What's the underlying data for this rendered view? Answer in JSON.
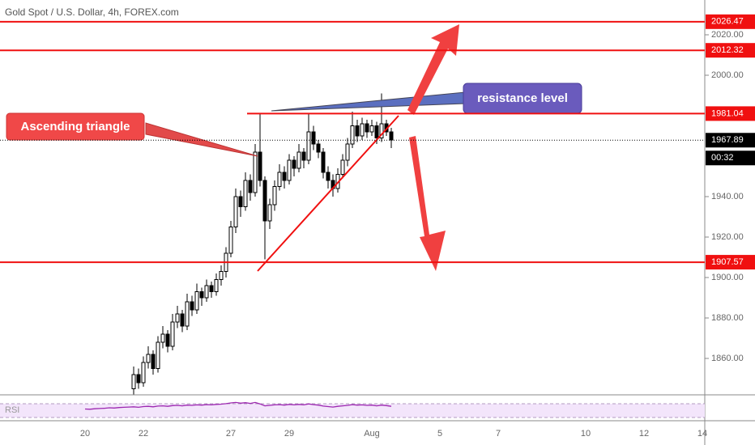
{
  "chart_data": {
    "type": "candlestick",
    "title": "Gold Spot / U.S. Dollar, 4h, FOREX.com",
    "ylim": [
      1842,
      2037.2
    ],
    "yticks": [
      {
        "value": 1860,
        "label": "1860.00"
      },
      {
        "value": 1880,
        "label": "1880.00"
      },
      {
        "value": 1900,
        "label": "1900.00"
      },
      {
        "value": 1920,
        "label": "1920.00"
      },
      {
        "value": 1940,
        "label": "1940.00"
      },
      {
        "value": 2000,
        "label": "2000.00"
      },
      {
        "value": 2020,
        "label": "2020.00"
      }
    ],
    "categories": [
      "20",
      null,
      null,
      null,
      null,
      null,
      null,
      null,
      null,
      null,
      null,
      null,
      "22",
      null,
      null,
      null,
      null,
      null,
      null,
      null,
      null,
      null,
      null,
      null,
      null,
      null,
      null,
      null,
      null,
      null,
      "27",
      null,
      null,
      null,
      null,
      null,
      null,
      null,
      null,
      null,
      null,
      null,
      "29",
      null,
      null,
      null,
      null,
      null,
      null,
      null,
      null,
      null,
      null,
      null,
      null,
      null,
      null,
      null,
      null,
      "Aug",
      null,
      null,
      null,
      null,
      null,
      null,
      null,
      null,
      null,
      null,
      null,
      null,
      null,
      "5",
      null,
      null,
      null,
      null,
      null,
      null,
      null,
      null,
      null,
      null,
      null,
      "7",
      null,
      null,
      null,
      null,
      null,
      null,
      null,
      null,
      null,
      null,
      null,
      null,
      null,
      null,
      null,
      null,
      null,
      "10",
      null,
      null,
      null,
      null,
      null,
      null,
      null,
      null,
      null,
      null,
      null,
      "12",
      null,
      null,
      null,
      null,
      null,
      null,
      null,
      null,
      null,
      null,
      null,
      "14"
    ],
    "ohlc": [
      null,
      null,
      null,
      null,
      null,
      null,
      null,
      null,
      null,
      null,
      [
        1845,
        1856,
        1842,
        1852
      ],
      [
        1852,
        1855,
        1845,
        1848
      ],
      [
        1848,
        1861,
        1846,
        1858
      ],
      [
        1858,
        1866,
        1855,
        1862
      ],
      [
        1862,
        1864,
        1852,
        1855
      ],
      [
        1855,
        1871,
        1853,
        1868
      ],
      [
        1868,
        1876,
        1865,
        1872
      ],
      [
        1872,
        1874,
        1863,
        1866
      ],
      [
        1866,
        1882,
        1864,
        1878
      ],
      [
        1878,
        1886,
        1875,
        1882
      ],
      [
        1882,
        1884,
        1873,
        1876
      ],
      [
        1876,
        1892,
        1874,
        1888
      ],
      [
        1888,
        1891,
        1881,
        1884
      ],
      [
        1884,
        1897,
        1882,
        1893
      ],
      [
        1893,
        1895,
        1886,
        1890
      ],
      [
        1890,
        1899,
        1888,
        1896
      ],
      [
        1896,
        1898,
        1890,
        1893
      ],
      [
        1893,
        1902,
        1891,
        1899
      ],
      [
        1899,
        1906,
        1896,
        1903
      ],
      [
        1903,
        1915,
        1900,
        1912
      ],
      [
        1912,
        1928,
        1910,
        1925
      ],
      [
        1925,
        1944,
        1922,
        1940
      ],
      [
        1940,
        1943,
        1930,
        1935
      ],
      [
        1935,
        1952,
        1933,
        1948
      ],
      [
        1948,
        1951,
        1938,
        1942
      ],
      [
        1942,
        1966,
        1940,
        1962
      ],
      [
        1962,
        1981,
        1945,
        1948
      ],
      [
        1948,
        1950,
        1909,
        1928
      ],
      [
        1928,
        1939,
        1924,
        1936
      ],
      [
        1936,
        1948,
        1933,
        1945
      ],
      [
        1945,
        1956,
        1943,
        1952
      ],
      [
        1952,
        1955,
        1944,
        1948
      ],
      [
        1948,
        1961,
        1946,
        1958
      ],
      [
        1958,
        1960,
        1950,
        1954
      ],
      [
        1954,
        1966,
        1952,
        1962
      ],
      [
        1962,
        1964,
        1954,
        1958
      ],
      [
        1958,
        1981,
        1956,
        1972
      ],
      [
        1972,
        1975,
        1963,
        1966
      ],
      [
        1966,
        1968,
        1959,
        1962
      ],
      [
        1962,
        1964,
        1949,
        1952
      ],
      [
        1952,
        1955,
        1944,
        1948
      ],
      [
        1948,
        1951,
        1940,
        1944
      ],
      [
        1944,
        1954,
        1942,
        1951
      ],
      [
        1951,
        1961,
        1949,
        1958
      ],
      [
        1958,
        1969,
        1955,
        1966
      ],
      [
        1966,
        1982,
        1964,
        1975
      ],
      [
        1975,
        1978,
        1967,
        1970
      ],
      [
        1970,
        1979,
        1968,
        1976
      ],
      [
        1976,
        1978,
        1969,
        1972
      ],
      [
        1972,
        1978,
        1970,
        1975
      ],
      [
        1975,
        1977,
        1966,
        1969
      ],
      [
        1969,
        1991,
        1967,
        1976
      ],
      [
        1976,
        1978,
        1970,
        1972
      ],
      [
        1972,
        1974,
        1964,
        1968
      ],
      null,
      null,
      null,
      null,
      null,
      null,
      null,
      null,
      null,
      null,
      null,
      null,
      null,
      null,
      null,
      null,
      null,
      null,
      null,
      null,
      null,
      null,
      null,
      null,
      null,
      null,
      null,
      null,
      null,
      null,
      null,
      null,
      null,
      null,
      null,
      null,
      null,
      null,
      null,
      null,
      null,
      null,
      null,
      null,
      null,
      null,
      null,
      null,
      null,
      null,
      null,
      null,
      null,
      null,
      null,
      null,
      null,
      null,
      null,
      null
    ],
    "rsi": {
      "name": "RSI",
      "color": "#9c27b0",
      "ylim": [
        0,
        100
      ],
      "values": [
        45,
        44,
        46,
        47,
        48,
        50,
        49,
        51,
        52,
        53,
        54,
        52,
        55,
        56,
        54,
        57,
        58,
        56,
        59,
        60,
        58,
        61,
        60,
        62,
        61,
        63,
        62,
        64,
        65,
        67,
        70,
        72,
        69,
        71,
        68,
        72,
        66,
        58,
        60,
        62,
        63,
        61,
        64,
        62,
        64,
        62,
        66,
        63,
        61,
        57,
        55,
        53,
        56,
        58,
        60,
        63,
        61,
        62,
        60,
        61,
        58,
        61,
        59,
        56,
        null,
        null,
        null,
        null,
        null,
        null,
        null,
        null,
        null,
        null,
        null,
        null,
        null,
        null,
        null,
        null,
        null,
        null,
        null,
        null,
        null,
        null,
        null,
        null,
        null,
        null,
        null,
        null,
        null,
        null,
        null,
        null,
        null,
        null,
        null,
        null,
        null,
        null,
        null,
        null,
        null,
        null,
        null,
        null,
        null,
        null,
        null,
        null,
        null,
        null,
        null,
        null,
        null,
        null,
        null,
        null,
        null,
        null,
        null,
        null,
        null,
        null,
        null,
        null
      ]
    },
    "levels": [
      2026.47,
      2012.32,
      1981.04,
      1907.57
    ],
    "level_color": "#f01010",
    "current_price": 1967.89,
    "countdown": "00:32",
    "annotations": {
      "triangle": "Ascending triangle",
      "resistance": "resistance level"
    }
  }
}
